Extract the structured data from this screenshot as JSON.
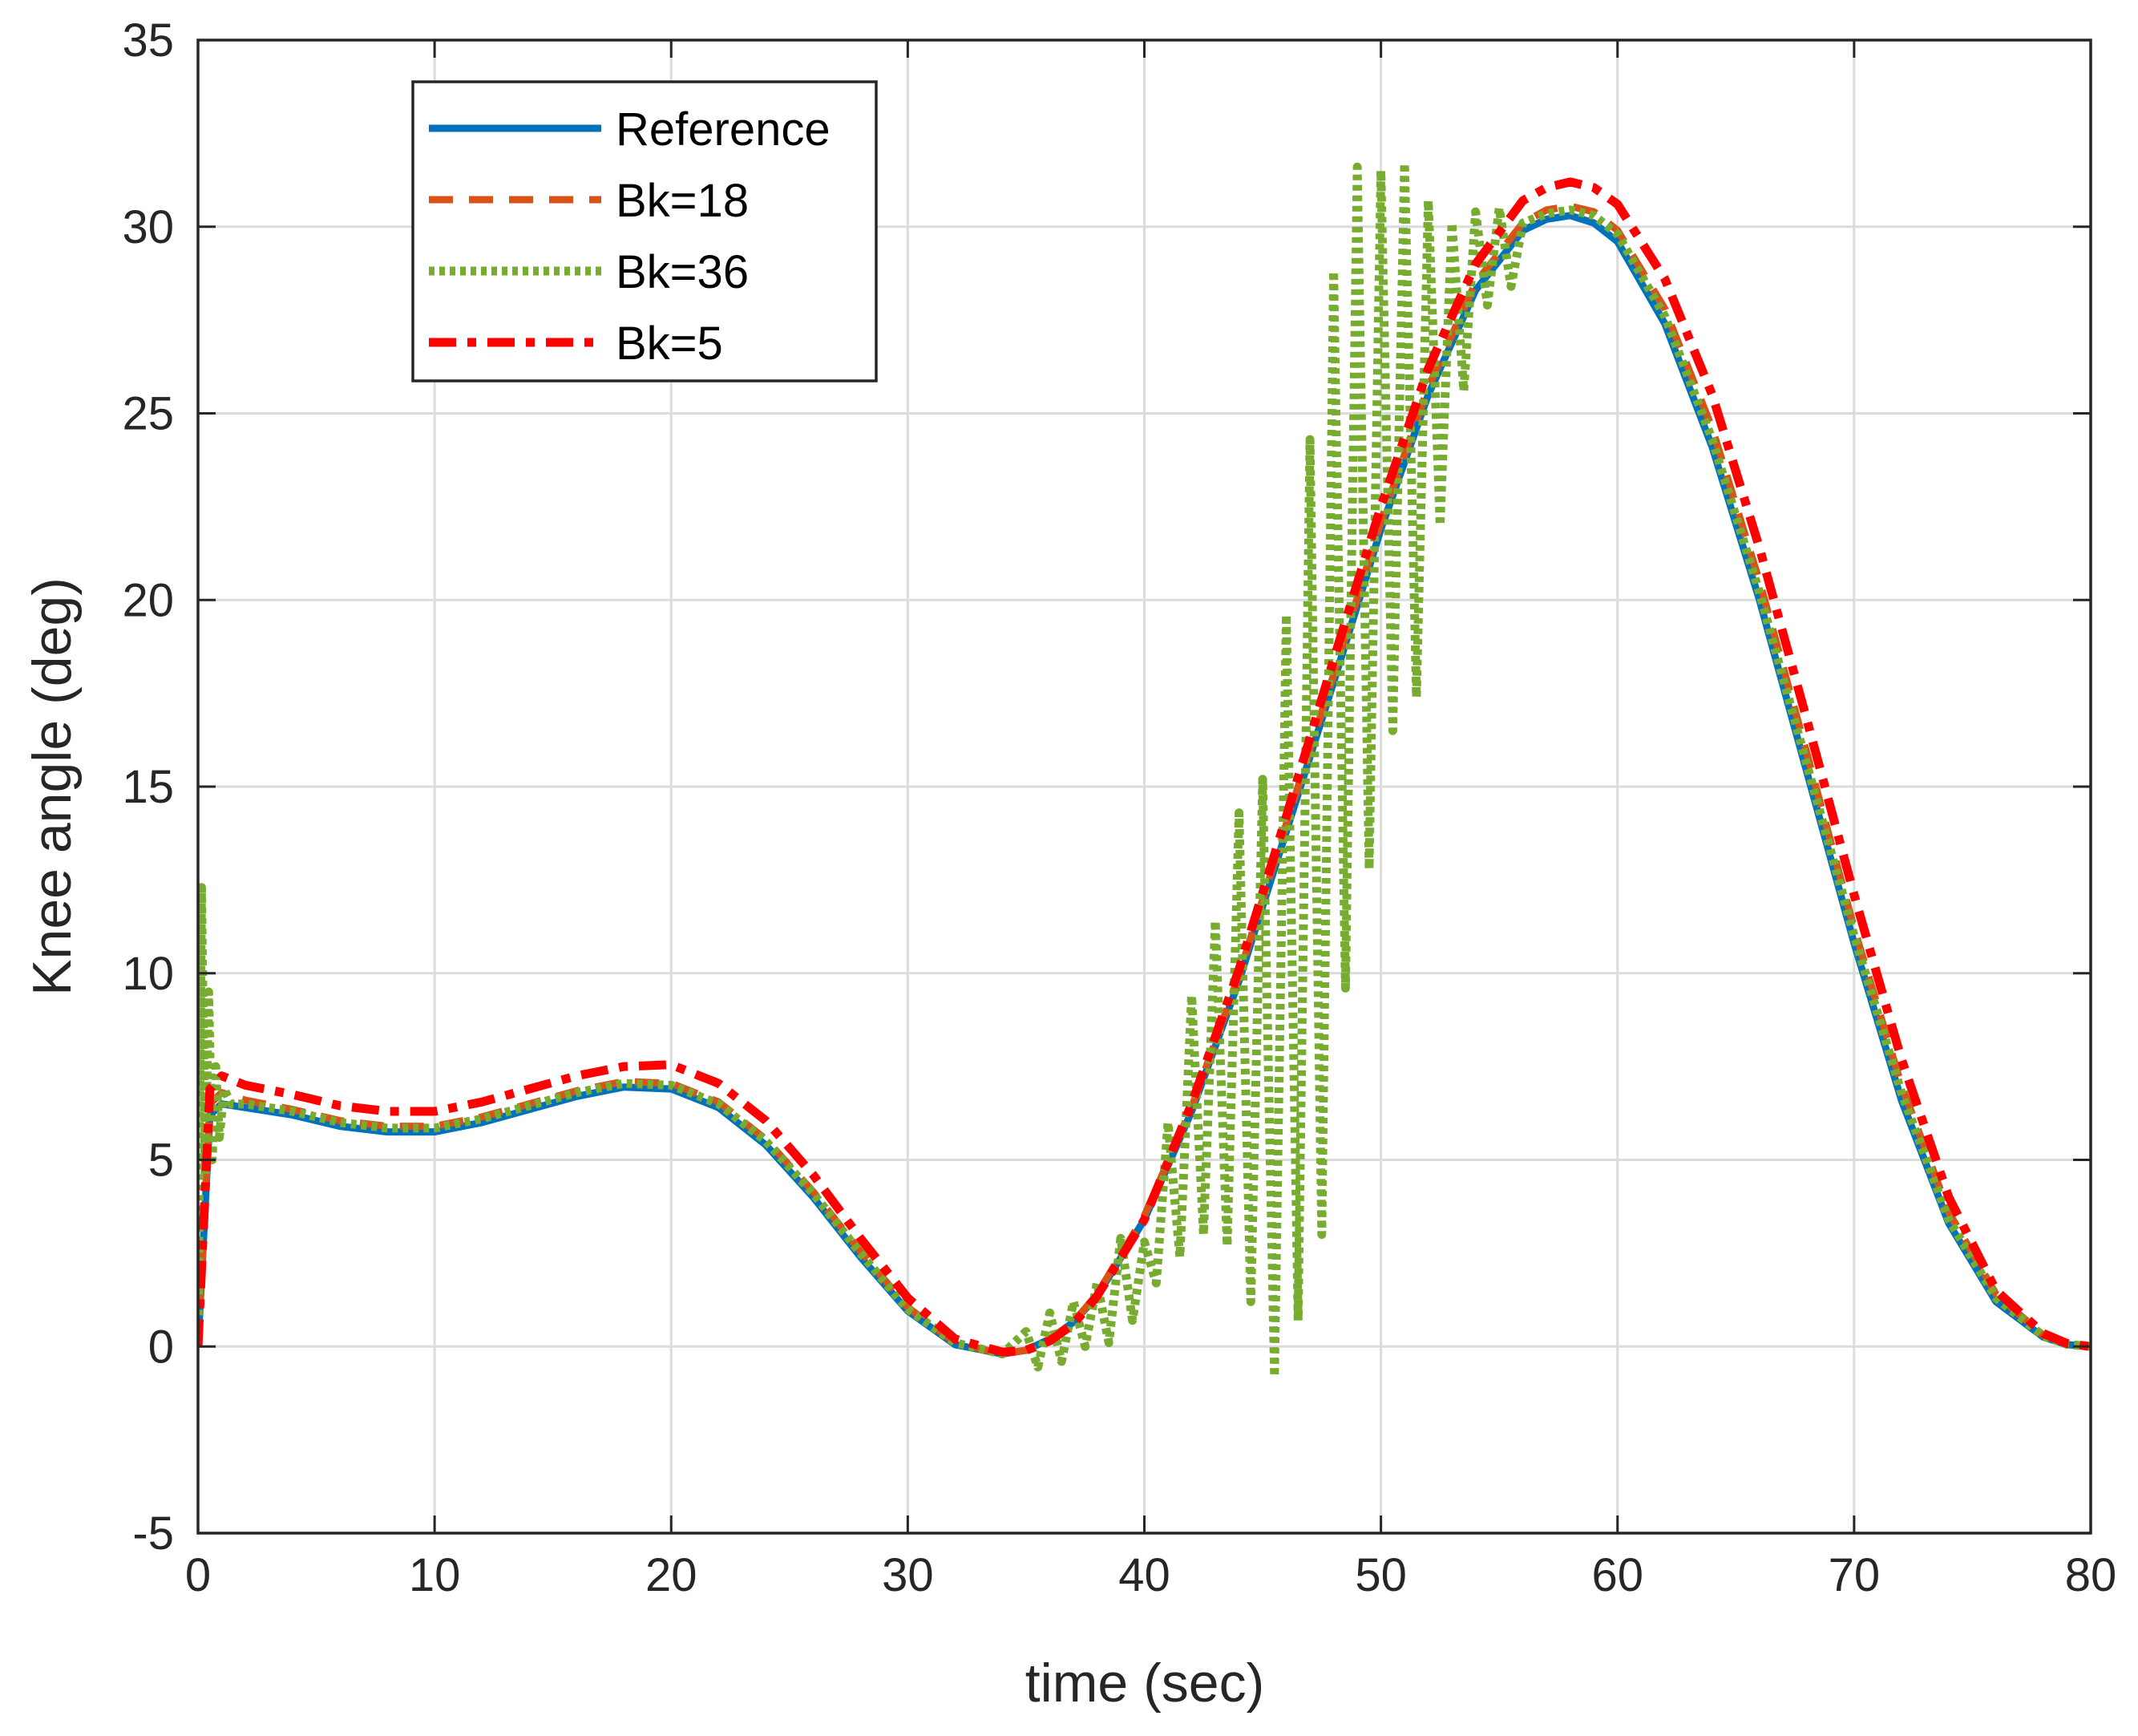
{
  "chart_data": {
    "type": "line",
    "title": "",
    "xlabel": "time (sec)",
    "ylabel": "Knee angle (deg)",
    "xlim": [
      0,
      80
    ],
    "ylim": [
      -5,
      35
    ],
    "xticks": [
      0,
      10,
      20,
      30,
      40,
      50,
      60,
      70,
      80
    ],
    "yticks": [
      -5,
      0,
      5,
      10,
      15,
      20,
      25,
      30,
      35
    ],
    "grid": true,
    "legend_position": "top-left",
    "series": [
      {
        "name": "Reference",
        "color": "#0072BD",
        "style": "solid",
        "x": [
          0,
          0.5,
          1,
          2,
          4,
          6,
          8,
          10,
          12,
          14,
          16,
          18,
          20,
          22,
          24,
          26,
          28,
          30,
          32,
          34,
          35,
          36,
          37,
          38,
          40,
          42,
          44,
          46,
          48,
          50,
          52,
          54,
          56,
          57,
          58,
          59,
          60,
          62,
          64,
          66,
          68,
          70,
          72,
          74,
          76,
          78,
          79,
          80
        ],
        "y": [
          0,
          6.2,
          6.5,
          6.4,
          6.2,
          5.9,
          5.75,
          5.75,
          6.0,
          6.35,
          6.7,
          6.95,
          6.9,
          6.4,
          5.4,
          4.0,
          2.4,
          0.95,
          0.05,
          -0.2,
          -0.1,
          0.2,
          0.65,
          1.35,
          3.4,
          6.3,
          9.8,
          13.8,
          17.8,
          21.9,
          25.5,
          28.3,
          29.9,
          30.2,
          30.3,
          30.1,
          29.6,
          27.4,
          24.1,
          20.0,
          15.4,
          10.8,
          6.6,
          3.3,
          1.2,
          0.25,
          0.05,
          0
        ]
      },
      {
        "name": "Bk=18",
        "color": "#D95319",
        "style": "dashed",
        "x": [
          0,
          0.5,
          1,
          2,
          4,
          6,
          8,
          10,
          12,
          14,
          16,
          18,
          20,
          22,
          24,
          26,
          28,
          30,
          32,
          34,
          35,
          36,
          37,
          38,
          40,
          42,
          44,
          46,
          48,
          50,
          52,
          54,
          56,
          57,
          58,
          59,
          60,
          62,
          64,
          66,
          68,
          70,
          72,
          74,
          76,
          78,
          79,
          80
        ],
        "y": [
          0,
          6.5,
          6.8,
          6.6,
          6.35,
          6.05,
          5.9,
          5.9,
          6.15,
          6.5,
          6.85,
          7.1,
          7.05,
          6.55,
          5.55,
          4.15,
          2.55,
          1.05,
          0.1,
          -0.2,
          -0.1,
          0.2,
          0.65,
          1.4,
          3.5,
          6.4,
          9.95,
          14.0,
          18.0,
          22.1,
          25.7,
          28.5,
          30.1,
          30.45,
          30.55,
          30.4,
          29.9,
          27.8,
          24.6,
          20.5,
          15.9,
          11.2,
          7.0,
          3.6,
          1.4,
          0.3,
          0.07,
          0
        ]
      },
      {
        "name": "Bk=36",
        "color": "#77AC30",
        "style": "dotted",
        "x": [
          0,
          0.15,
          0.3,
          0.45,
          0.6,
          0.75,
          0.9,
          1.1,
          1.4,
          2,
          4,
          6,
          8,
          10,
          12,
          14,
          16,
          18,
          20,
          22,
          24,
          26,
          28,
          30,
          32,
          34,
          35,
          35.5,
          36,
          36.5,
          37,
          37.5,
          38,
          38.5,
          39,
          39.5,
          40,
          40.5,
          41,
          41.5,
          42,
          42.5,
          43,
          43.5,
          44,
          44.5,
          45,
          45.5,
          46,
          46.5,
          47,
          47.5,
          48,
          48.5,
          49,
          49.5,
          50,
          50.5,
          51,
          51.5,
          52,
          52.5,
          53,
          53.5,
          54,
          54.5,
          55,
          55.5,
          56,
          57,
          58,
          59,
          60,
          62,
          64,
          66,
          68,
          70,
          72,
          74,
          76,
          78,
          79,
          80
        ],
        "y": [
          0,
          12.3,
          4.6,
          9.5,
          5.0,
          7.5,
          5.6,
          6.9,
          6.5,
          6.5,
          6.3,
          6.0,
          5.85,
          5.85,
          6.1,
          6.45,
          6.8,
          7.05,
          7.0,
          6.5,
          5.5,
          4.1,
          2.5,
          1.0,
          0.1,
          -0.2,
          0.4,
          -0.55,
          0.9,
          -0.4,
          1.2,
          0.0,
          1.7,
          0.1,
          2.9,
          0.7,
          2.8,
          1.7,
          6.0,
          2.4,
          9.4,
          3.0,
          11.4,
          2.7,
          14.3,
          1.2,
          15.2,
          -0.8,
          19.6,
          0.7,
          24.3,
          3.0,
          28.8,
          9.6,
          31.6,
          12.8,
          31.5,
          16.5,
          31.7,
          17.4,
          30.7,
          22.0,
          30.1,
          25.6,
          30.4,
          27.9,
          30.5,
          28.4,
          30.1,
          30.35,
          30.45,
          30.3,
          29.8,
          27.6,
          24.3,
          20.2,
          15.6,
          11.0,
          6.8,
          3.4,
          1.3,
          0.28,
          0.06,
          0
        ]
      },
      {
        "name": "Bk=5",
        "color": "#FF0000",
        "style": "dashdot",
        "x": [
          0,
          0.5,
          1,
          2,
          4,
          6,
          8,
          10,
          12,
          14,
          16,
          18,
          20,
          22,
          24,
          26,
          28,
          30,
          32,
          34,
          35,
          36,
          37,
          38,
          40,
          42,
          44,
          46,
          48,
          50,
          52,
          54,
          56,
          57,
          58,
          59,
          60,
          62,
          64,
          66,
          68,
          70,
          72,
          74,
          76,
          78,
          79,
          80
        ],
        "y": [
          0,
          6.9,
          7.25,
          7.0,
          6.75,
          6.45,
          6.3,
          6.3,
          6.55,
          6.9,
          7.25,
          7.5,
          7.55,
          7.05,
          6.05,
          4.6,
          2.9,
          1.3,
          0.2,
          -0.15,
          -0.1,
          0.15,
          0.6,
          1.35,
          3.4,
          6.5,
          10.1,
          14.2,
          18.4,
          22.5,
          26.2,
          29.0,
          30.7,
          31.05,
          31.2,
          31.05,
          30.6,
          28.6,
          25.5,
          21.4,
          16.8,
          12.1,
          7.7,
          4.0,
          1.5,
          0.35,
          0.08,
          0
        ]
      }
    ]
  }
}
